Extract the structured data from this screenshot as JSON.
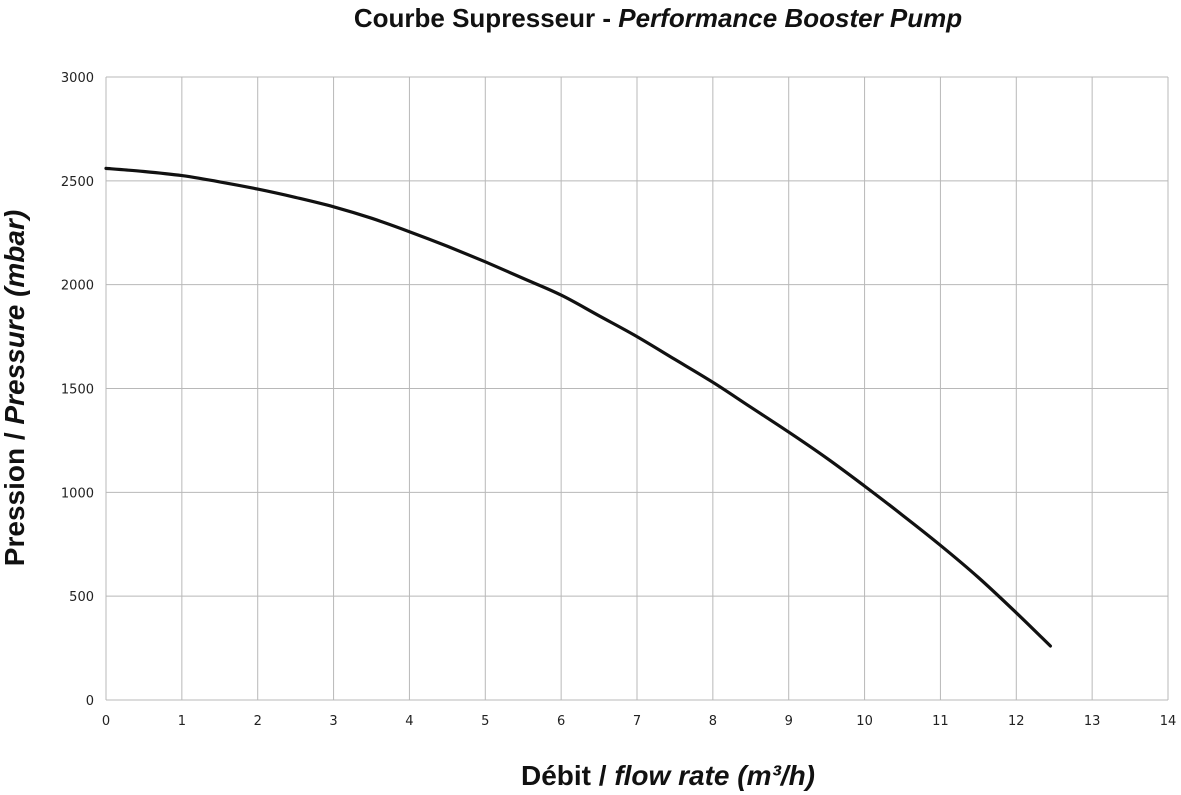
{
  "chart_data": {
    "type": "line",
    "title": {
      "regular": "Courbe Supresseur - ",
      "italic": "Performance Booster Pump"
    },
    "xlabel": {
      "regular": "Débit / ",
      "italic": "flow rate (m³/h)"
    },
    "ylabel": {
      "regular": "Pression / ",
      "italic": "Pressure (mbar)"
    },
    "xlim": [
      0,
      14
    ],
    "ylim": [
      0,
      3000
    ],
    "xticks": [
      "0",
      "1",
      "2",
      "3",
      "4",
      "5",
      "6",
      "7",
      "8",
      "9",
      "10",
      "11",
      "12",
      "13",
      "14"
    ],
    "yticks": [
      "0",
      "500",
      "1000",
      "1500",
      "2000",
      "2500",
      "3000"
    ],
    "grid": true,
    "line_color": "#111111",
    "series": [
      {
        "x": [
          0,
          0.5,
          1,
          1.5,
          2,
          2.5,
          3,
          3.5,
          4,
          4.5,
          5,
          5.5,
          6,
          6.5,
          7,
          7.5,
          8,
          8.5,
          9,
          9.5,
          10,
          10.5,
          11,
          11.5,
          12,
          12.45
        ],
        "values": [
          2560,
          2545,
          2525,
          2495,
          2460,
          2420,
          2375,
          2320,
          2255,
          2185,
          2110,
          2030,
          1950,
          1850,
          1750,
          1640,
          1530,
          1410,
          1290,
          1165,
          1030,
          890,
          745,
          590,
          420,
          260
        ]
      }
    ]
  }
}
